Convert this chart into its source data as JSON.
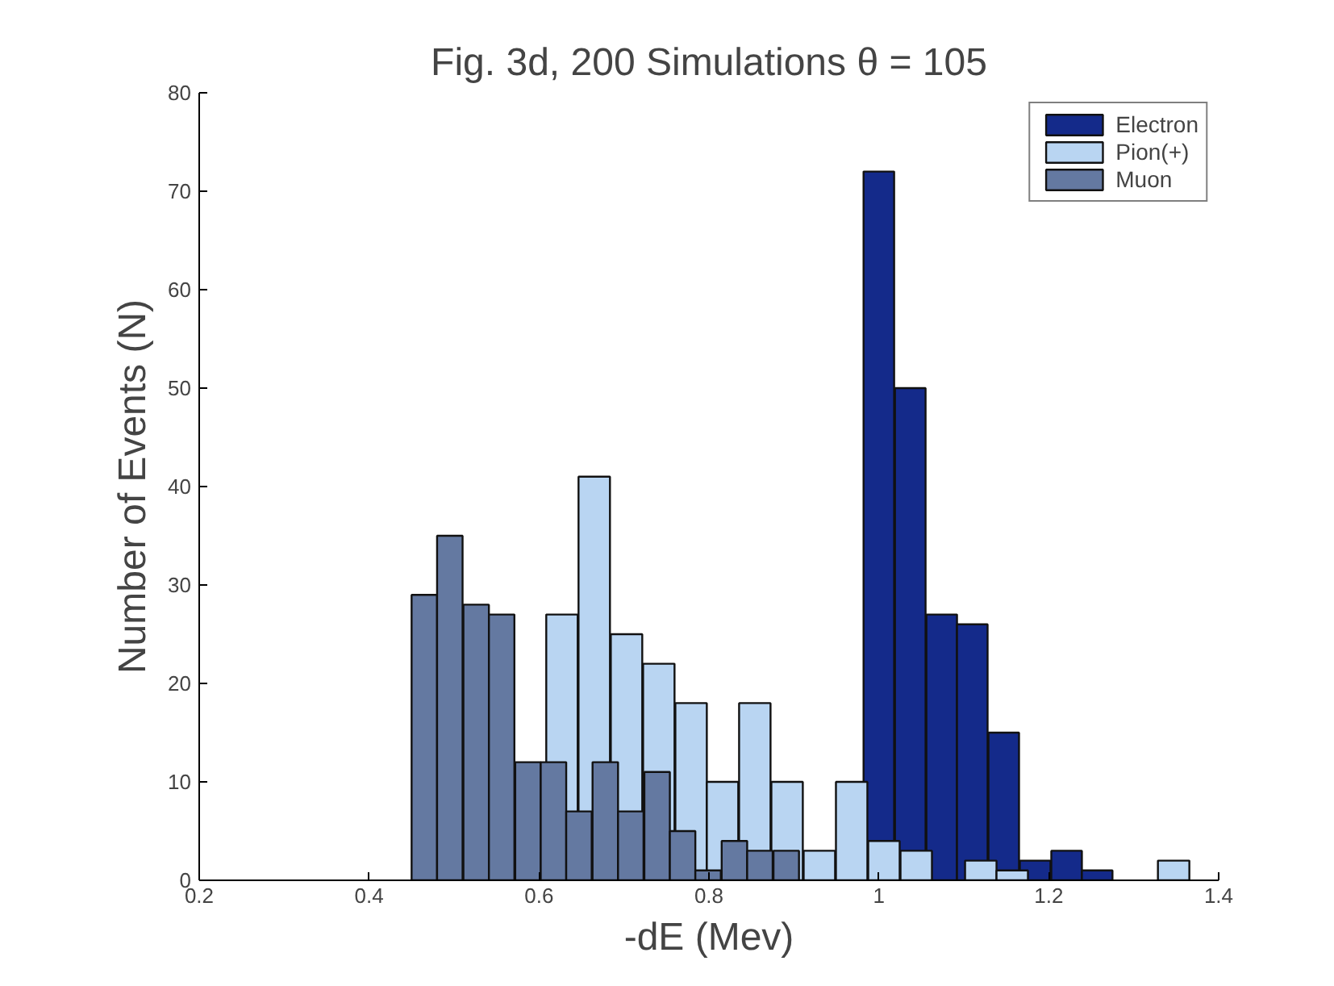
{
  "chart_data": {
    "type": "bar",
    "title": "Fig. 3d, 200 Simulations θ = 105",
    "xlabel": "-dE (Mev)",
    "ylabel": "Number of Events (N)",
    "series": [
      {
        "name": "Electron",
        "color": "#142a8a",
        "x": [
          1.0,
          1.037,
          1.074,
          1.11,
          1.147,
          1.184,
          1.221,
          1.257
        ],
        "values": [
          72,
          50,
          27,
          26,
          15,
          2,
          3,
          1
        ]
      },
      {
        "name": "Pion(+)",
        "color": "#b9d5f2",
        "x": [
          0.627,
          0.665,
          0.703,
          0.741,
          0.779,
          0.816,
          0.854,
          0.892,
          0.93,
          0.968,
          1.006,
          1.044,
          1.12,
          1.157,
          1.347
        ],
        "values": [
          27,
          41,
          25,
          22,
          18,
          10,
          18,
          10,
          3,
          10,
          4,
          3,
          2,
          1,
          2
        ]
      },
      {
        "name": "Muon",
        "color": "#6479a1",
        "x": [
          0.465,
          0.495,
          0.526,
          0.556,
          0.587,
          0.617,
          0.647,
          0.678,
          0.708,
          0.739,
          0.769,
          0.799,
          0.83,
          0.86,
          0.891
        ],
        "values": [
          29,
          35,
          28,
          27,
          12,
          12,
          7,
          12,
          7,
          11,
          5,
          1,
          4,
          3,
          3
        ]
      }
    ],
    "xlim": [
      0.2,
      1.4
    ],
    "xticks": [
      0.2,
      0.4,
      0.6,
      0.8,
      1,
      1.2,
      1.4
    ],
    "ylim": [
      0,
      80
    ],
    "yticks": [
      0,
      10,
      20,
      30,
      40,
      50,
      60,
      70,
      80
    ],
    "legend": "top right"
  }
}
